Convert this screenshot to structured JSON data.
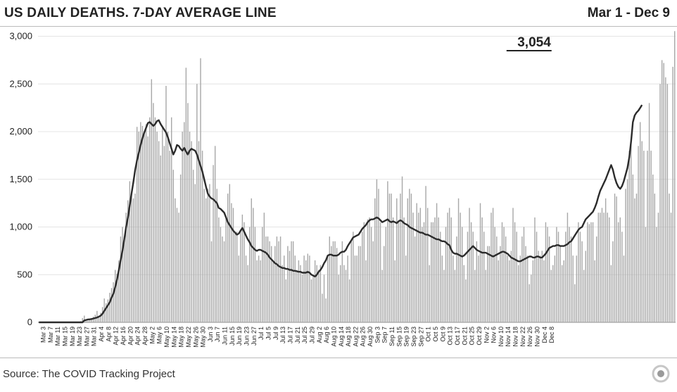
{
  "header": {
    "title": "US DAILY DEATHS. 7-DAY AVERAGE LINE",
    "range": "Mar 1 - Dec 9"
  },
  "footer": {
    "source": "Source: The COVID Tracking Project",
    "logo_icon": "covid-tracking-project-logo-icon"
  },
  "colors": {
    "bar": "#a8a8a8",
    "line": "#2b2b2b",
    "grid": "#e4e4e4",
    "text": "#222222"
  },
  "chart_data": {
    "type": "bar",
    "title": "US DAILY DEATHS. 7-DAY AVERAGE LINE",
    "subtitle": "Mar 1 - Dec 9",
    "start_date": "2020-03-01",
    "end_date": "2020-12-09",
    "ylim": [
      0,
      3100
    ],
    "yticks": [
      0,
      500,
      1000,
      1500,
      2000,
      2500,
      3000
    ],
    "ytick_labels": [
      "0",
      "500",
      "1,000",
      "1,500",
      "2,000",
      "2,500",
      "3,000"
    ],
    "xtick_labels": [
      "Mar 3",
      "Mar 7",
      "Mar 11",
      "Mar 15",
      "Mar 19",
      "Mar 23",
      "Mar 27",
      "Mar 31",
      "Apr 4",
      "Apr 8",
      "Apr 12",
      "Apr 16",
      "Apr 20",
      "Apr 24",
      "Apr 28",
      "May 2",
      "May 6",
      "May 10",
      "May 14",
      "May 18",
      "May 22",
      "May 26",
      "May 30",
      "Jun 3",
      "Jun 7",
      "Jun 11",
      "Jun 15",
      "Jun 19",
      "Jun 23",
      "Jun 27",
      "Jul 1",
      "Jul 5",
      "Jul 9",
      "Jul 13",
      "Jul 17",
      "Jul 21",
      "Jul 25",
      "Jul 29",
      "Aug 2",
      "Aug 6",
      "Aug 10",
      "Aug 14",
      "Aug 18",
      "Aug 22",
      "Aug 26",
      "Aug 30",
      "Sep 3",
      "Sep 7",
      "Sep 11",
      "Sep 15",
      "Sep 19",
      "Sep 23",
      "Sep 27",
      "Oct 1",
      "Oct 5",
      "Oct 9",
      "Oct 13",
      "Oct 17",
      "Oct 21",
      "Oct 25",
      "Oct 29",
      "Nov 2",
      "Nov 6",
      "Nov 10",
      "Nov 14",
      "Nov 18",
      "Nov 22",
      "Nov 26",
      "Nov 30",
      "Dec 4",
      "Dec 8"
    ],
    "grid": true,
    "annotation": {
      "label": "3,054",
      "date": "2020-12-09",
      "value": 3054
    },
    "series": [
      {
        "name": "Daily deaths",
        "type": "bar",
        "values": [
          0,
          0,
          0,
          0,
          0,
          0,
          0,
          0,
          0,
          0,
          0,
          0,
          0,
          0,
          0,
          0,
          0,
          0,
          0,
          0,
          0,
          0,
          5,
          12,
          45,
          70,
          20,
          20,
          30,
          45,
          60,
          80,
          120,
          70,
          100,
          160,
          250,
          200,
          240,
          310,
          360,
          420,
          550,
          510,
          650,
          900,
          1000,
          900,
          1150,
          1280,
          1480,
          1350,
          1300,
          1350,
          2050,
          2000,
          2100,
          2060,
          2000,
          2080,
          1950,
          2150,
          2550,
          2300,
          2150,
          2000,
          1900,
          1750,
          2050,
          1850,
          2480,
          2000,
          1800,
          2150,
          1600,
          1300,
          1200,
          1150,
          1550,
          2000,
          2100,
          2670,
          2300,
          2000,
          1900,
          1600,
          1450,
          2500,
          1900,
          2770,
          1800,
          1400,
          1300,
          1400,
          1450,
          850,
          1650,
          1850,
          1400,
          1100,
          1000,
          900,
          850,
          1100,
          1350,
          1450,
          1250,
          1200,
          950,
          950,
          700,
          950,
          1130,
          1050,
          700,
          600,
          1000,
          1300,
          1200,
          1000,
          650,
          700,
          650,
          1000,
          1150,
          900,
          900,
          850,
          800,
          650,
          800,
          900,
          850,
          900,
          600,
          700,
          450,
          800,
          750,
          850,
          850,
          700,
          550,
          650,
          600,
          500,
          700,
          650,
          720,
          700,
          450,
          500,
          650,
          600,
          550,
          600,
          300,
          500,
          250,
          700,
          900,
          800,
          850,
          850,
          780,
          500,
          600,
          850,
          600,
          550,
          700,
          450,
          850,
          950,
          700,
          700,
          800,
          800,
          950,
          1050,
          650,
          1080,
          1100,
          1000,
          850,
          1300,
          1500,
          1400,
          1050,
          550,
          800,
          1000,
          1480,
          1350,
          1350,
          1100,
          650,
          1300,
          1050,
          1350,
          1530,
          1100,
          700,
          1300,
          1400,
          1350,
          1150,
          900,
          1250,
          1150,
          1200,
          1000,
          1050,
          1430,
          1200,
          600,
          1050,
          1050,
          1100,
          1250,
          1100,
          950,
          700,
          550,
          1000,
          1150,
          1200,
          1100,
          700,
          550,
          900,
          1300,
          1150,
          1000,
          600,
          450,
          950,
          1200,
          1050,
          950,
          550,
          850,
          700,
          1250,
          1100,
          950,
          550,
          800,
          800,
          1150,
          1200,
          1000,
          900,
          650,
          800,
          1050,
          1000,
          900,
          700,
          650,
          750,
          1200,
          1050,
          950,
          600,
          700,
          900,
          1000,
          800,
          700,
          400,
          500,
          650,
          1100,
          950,
          750,
          700,
          750,
          650,
          1050,
          1000,
          900,
          550,
          600,
          700,
          1000,
          950,
          800,
          600,
          650,
          950,
          1150,
          1000,
          900,
          700,
          400,
          700,
          1050,
          950,
          850,
          550,
          750,
          1050,
          1030,
          1050,
          1050,
          650,
          900,
          1150,
          1150,
          1200,
          1150,
          1300,
          1150,
          1100,
          600,
          850,
          1350,
          1320,
          1050,
          1100,
          950,
          700,
          1400,
          1500,
          1800,
          1870,
          1550,
          1300,
          1350,
          1850,
          2100,
          1900,
          1800,
          1000,
          1800,
          2300,
          1800,
          1550,
          1350,
          1000,
          1150,
          2500,
          2750,
          2720,
          2570,
          2500,
          1350,
          1150,
          2680,
          3054
        ]
      },
      {
        "name": "7-day average",
        "type": "line",
        "values": [
          0,
          0,
          0,
          0,
          0,
          0,
          0,
          0,
          0,
          0,
          0,
          0,
          0,
          0,
          0,
          0,
          0,
          0,
          0,
          0,
          0,
          0,
          0,
          0,
          0,
          20,
          25,
          30,
          32,
          35,
          40,
          45,
          50,
          60,
          70,
          90,
          120,
          150,
          180,
          210,
          260,
          300,
          370,
          450,
          550,
          650,
          750,
          870,
          1000,
          1100,
          1230,
          1350,
          1470,
          1600,
          1700,
          1780,
          1860,
          1930,
          1990,
          2040,
          2090,
          2100,
          2080,
          2060,
          2080,
          2110,
          2120,
          2080,
          2050,
          2020,
          1990,
          1940,
          1880,
          1820,
          1760,
          1800,
          1860,
          1850,
          1820,
          1800,
          1830,
          1790,
          1760,
          1800,
          1820,
          1810,
          1800,
          1760,
          1700,
          1640,
          1580,
          1500,
          1420,
          1350,
          1320,
          1300,
          1290,
          1270,
          1250,
          1200,
          1190,
          1170,
          1150,
          1100,
          1050,
          1020,
          990,
          960,
          940,
          920,
          930,
          960,
          990,
          950,
          910,
          870,
          840,
          800,
          780,
          760,
          750,
          760,
          760,
          750,
          740,
          730,
          710,
          680,
          660,
          640,
          620,
          610,
          590,
          580,
          570,
          570,
          560,
          560,
          550,
          550,
          540,
          540,
          535,
          530,
          530,
          520,
          520,
          520,
          530,
          520,
          500,
          490,
          480,
          500,
          530,
          550,
          580,
          620,
          650,
          700,
          710,
          710,
          700,
          700,
          700,
          710,
          730,
          740,
          740,
          760,
          800,
          830,
          860,
          890,
          900,
          910,
          920,
          950,
          980,
          1000,
          1020,
          1050,
          1070,
          1080,
          1080,
          1090,
          1100,
          1090,
          1070,
          1050,
          1060,
          1070,
          1080,
          1060,
          1050,
          1060,
          1050,
          1040,
          1060,
          1070,
          1060,
          1040,
          1030,
          1020,
          1000,
          990,
          980,
          970,
          960,
          950,
          940,
          940,
          930,
          920,
          920,
          910,
          900,
          890,
          880,
          870,
          870,
          860,
          850,
          850,
          840,
          820,
          810,
          760,
          730,
          720,
          720,
          710,
          700,
          690,
          700,
          720,
          740,
          760,
          780,
          800,
          780,
          760,
          750,
          740,
          730,
          730,
          730,
          720,
          710,
          700,
          690,
          700,
          710,
          720,
          730,
          740,
          740,
          730,
          720,
          700,
          680,
          670,
          660,
          650,
          640,
          640,
          650,
          660,
          670,
          680,
          690,
          690,
          680,
          680,
          690,
          690,
          680,
          680,
          700,
          720,
          750,
          780,
          790,
          800,
          800,
          810,
          810,
          800,
          800,
          800,
          810,
          820,
          840,
          850,
          880,
          910,
          940,
          970,
          990,
          1000,
          1040,
          1080,
          1100,
          1120,
          1140,
          1160,
          1200,
          1250,
          1320,
          1380,
          1420,
          1460,
          1500,
          1550,
          1600,
          1650,
          1600,
          1520,
          1460,
          1420,
          1400,
          1430,
          1480,
          1550,
          1620,
          1730,
          1900,
          2100,
          2170,
          2200,
          2220,
          2250,
          2280
        ]
      }
    ]
  }
}
